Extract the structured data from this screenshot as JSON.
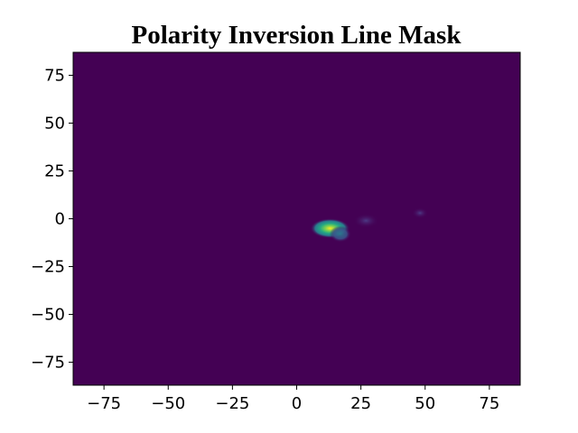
{
  "chart_data": {
    "type": "heatmap",
    "title": "Polarity Inversion Line Mask",
    "xlabel": "",
    "ylabel": "",
    "xlim": [
      -87,
      87
    ],
    "ylim": [
      -87,
      87
    ],
    "xticks": [
      -75,
      -50,
      -25,
      0,
      25,
      50,
      75
    ],
    "yticks": [
      75,
      50,
      25,
      0,
      -25,
      -50,
      -75
    ],
    "xtick_labels": [
      "−75",
      "−50",
      "−25",
      "0",
      "25",
      "50",
      "75"
    ],
    "ytick_labels": [
      "75",
      "50",
      "25",
      "0",
      "−25",
      "−50",
      "−75"
    ],
    "colormap": "viridis",
    "colors": {
      "background": "#440154",
      "low": "#46327e",
      "mid": "#21918c",
      "high": "#fde725"
    },
    "grid": false,
    "hotspots": [
      {
        "x": 13,
        "y": -5,
        "intensity": 1.0
      },
      {
        "x": 17,
        "y": -8,
        "intensity": 0.45
      },
      {
        "x": 27,
        "y": -1,
        "intensity": 0.12
      },
      {
        "x": 48,
        "y": 3,
        "intensity": 0.05
      }
    ]
  }
}
